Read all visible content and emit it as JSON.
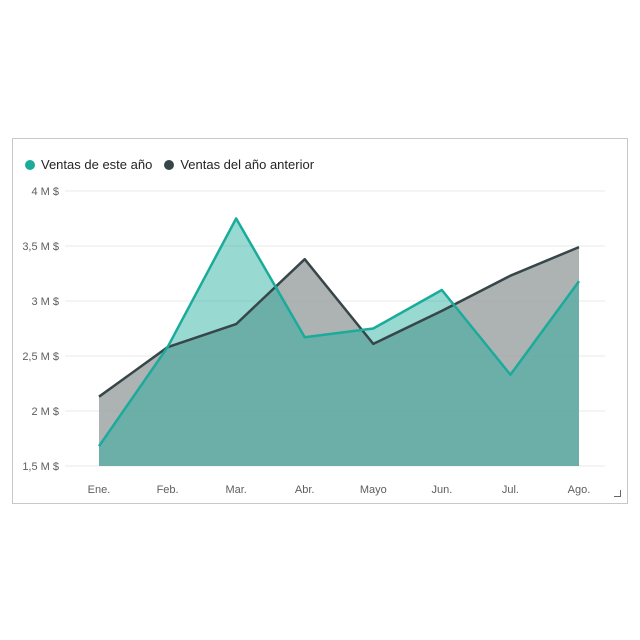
{
  "chart_data": {
    "type": "area",
    "categories": [
      "Ene.",
      "Feb.",
      "Mar.",
      "Abr.",
      "Mayo",
      "Jun.",
      "Jul.",
      "Ago."
    ],
    "series": [
      {
        "name": "Ventas de este año",
        "color": "#1aab9b",
        "values": [
          1.68,
          2.58,
          3.75,
          2.67,
          2.75,
          3.1,
          2.33,
          3.18
        ]
      },
      {
        "name": "Ventas del año anterior",
        "color": "#374649",
        "values": [
          2.13,
          2.58,
          2.79,
          3.38,
          2.61,
          2.91,
          3.23,
          3.49
        ]
      }
    ],
    "ylim": [
      1.5,
      4
    ],
    "yticks": [
      4,
      3.5,
      3,
      2.5,
      2,
      1.5
    ],
    "ytick_labels": [
      "4 M $",
      "3,5 M $",
      "3 M $",
      "2,5 M $",
      "2 M $",
      "1,5 M $"
    ],
    "grid": true,
    "legend_position": "top-left"
  }
}
